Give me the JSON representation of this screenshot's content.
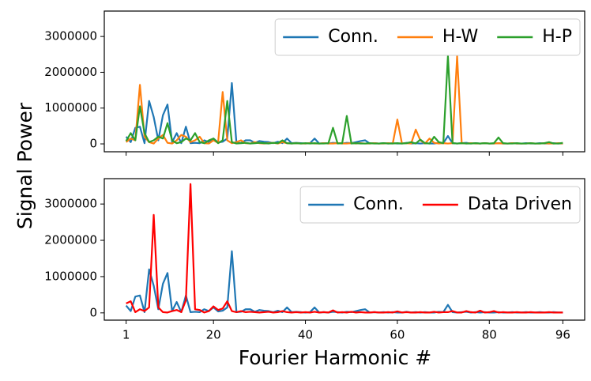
{
  "chart_data": [
    {
      "type": "line",
      "ylabel": "Signal Power",
      "x": [
        1,
        2,
        3,
        4,
        5,
        6,
        7,
        8,
        9,
        10,
        11,
        12,
        13,
        14,
        15,
        16,
        17,
        18,
        19,
        20,
        21,
        22,
        23,
        24,
        25,
        26,
        27,
        28,
        29,
        30,
        31,
        32,
        33,
        34,
        35,
        36,
        37,
        38,
        39,
        40,
        41,
        42,
        43,
        44,
        45,
        46,
        47,
        48,
        49,
        50,
        51,
        52,
        53,
        54,
        55,
        56,
        57,
        58,
        59,
        60,
        61,
        62,
        63,
        64,
        65,
        66,
        67,
        68,
        69,
        70,
        71,
        72,
        73,
        74,
        75,
        76,
        77,
        78,
        79,
        80,
        81,
        82,
        83,
        84,
        85,
        86,
        87,
        88,
        89,
        90,
        91,
        92,
        93,
        94,
        95,
        96
      ],
      "series": [
        {
          "name": "Conn.",
          "color": "#1f77b4",
          "values": [
            200000,
            50000,
            450000,
            480000,
            20000,
            1200000,
            750000,
            100000,
            800000,
            1100000,
            50000,
            300000,
            20000,
            480000,
            20000,
            30000,
            20000,
            100000,
            50000,
            150000,
            40000,
            60000,
            150000,
            1700000,
            20000,
            30000,
            100000,
            100000,
            30000,
            80000,
            60000,
            50000,
            20000,
            60000,
            20000,
            150000,
            20000,
            30000,
            20000,
            10000,
            20000,
            150000,
            10000,
            20000,
            10000,
            30000,
            20000,
            10000,
            30000,
            20000,
            50000,
            80000,
            100000,
            10000,
            20000,
            10000,
            20000,
            10000,
            20000,
            10000,
            10000,
            30000,
            10000,
            20000,
            10000,
            20000,
            10000,
            10000,
            30000,
            20000,
            220000,
            20000,
            10000,
            20000,
            30000,
            10000,
            20000,
            10000,
            20000,
            10000,
            10000,
            20000,
            10000,
            10000,
            20000,
            10000,
            10000,
            20000,
            10000,
            10000,
            20000,
            10000,
            10000,
            20000,
            10000,
            10000
          ]
        },
        {
          "name": "H-W",
          "color": "#ff7f0e",
          "values": [
            50000,
            150000,
            100000,
            1650000,
            200000,
            50000,
            10000,
            150000,
            250000,
            30000,
            10000,
            100000,
            250000,
            200000,
            50000,
            100000,
            200000,
            20000,
            10000,
            100000,
            30000,
            1450000,
            100000,
            20000,
            50000,
            100000,
            20000,
            10000,
            50000,
            20000,
            10000,
            20000,
            30000,
            10000,
            50000,
            20000,
            10000,
            20000,
            10000,
            10000,
            20000,
            10000,
            10000,
            20000,
            10000,
            10000,
            20000,
            10000,
            10000,
            20000,
            10000,
            20000,
            10000,
            10000,
            20000,
            10000,
            10000,
            20000,
            10000,
            680000,
            10000,
            20000,
            10000,
            400000,
            100000,
            10000,
            150000,
            30000,
            10000,
            20000,
            10000,
            20000,
            2450000,
            20000,
            10000,
            20000,
            10000,
            10000,
            20000,
            10000,
            10000,
            20000,
            10000,
            10000,
            20000,
            10000,
            10000,
            10000,
            20000,
            10000,
            10000,
            20000,
            10000,
            10000,
            20000,
            10000
          ]
        },
        {
          "name": "H-P",
          "color": "#2ca02c",
          "values": [
            80000,
            300000,
            100000,
            1050000,
            300000,
            50000,
            100000,
            200000,
            150000,
            580000,
            100000,
            20000,
            50000,
            150000,
            100000,
            300000,
            50000,
            20000,
            100000,
            150000,
            20000,
            100000,
            1200000,
            50000,
            10000,
            20000,
            30000,
            10000,
            20000,
            30000,
            20000,
            10000,
            30000,
            20000,
            100000,
            20000,
            10000,
            20000,
            10000,
            20000,
            10000,
            20000,
            10000,
            10000,
            20000,
            450000,
            10000,
            20000,
            780000,
            10000,
            20000,
            10000,
            10000,
            20000,
            10000,
            10000,
            20000,
            10000,
            10000,
            20000,
            10000,
            20000,
            50000,
            10000,
            120000,
            20000,
            10000,
            200000,
            50000,
            20000,
            2450000,
            20000,
            10000,
            20000,
            10000,
            10000,
            20000,
            10000,
            20000,
            10000,
            20000,
            180000,
            20000,
            10000,
            10000,
            20000,
            10000,
            10000,
            20000,
            10000,
            10000,
            20000,
            50000,
            10000,
            10000,
            30000
          ]
        }
      ],
      "xlim": [
        -3.75,
        100.75
      ],
      "xticks": [
        1,
        20,
        40,
        60,
        80,
        96
      ],
      "show_xtick_labels": false,
      "ylim": [
        -220000,
        3710000
      ],
      "yticks": [
        0,
        1000000,
        2000000,
        3000000
      ],
      "legend": "upper right",
      "legend_columns": 3
    },
    {
      "type": "line",
      "xlabel": "Fourier Harmonic #",
      "x": [
        1,
        2,
        3,
        4,
        5,
        6,
        7,
        8,
        9,
        10,
        11,
        12,
        13,
        14,
        15,
        16,
        17,
        18,
        19,
        20,
        21,
        22,
        23,
        24,
        25,
        26,
        27,
        28,
        29,
        30,
        31,
        32,
        33,
        34,
        35,
        36,
        37,
        38,
        39,
        40,
        41,
        42,
        43,
        44,
        45,
        46,
        47,
        48,
        49,
        50,
        51,
        52,
        53,
        54,
        55,
        56,
        57,
        58,
        59,
        60,
        61,
        62,
        63,
        64,
        65,
        66,
        67,
        68,
        69,
        70,
        71,
        72,
        73,
        74,
        75,
        76,
        77,
        78,
        79,
        80,
        81,
        82,
        83,
        84,
        85,
        86,
        87,
        88,
        89,
        90,
        91,
        92,
        93,
        94,
        95,
        96
      ],
      "series": [
        {
          "name": "Conn.",
          "color": "#1f77b4",
          "values": [
            200000,
            50000,
            450000,
            480000,
            20000,
            1200000,
            750000,
            100000,
            800000,
            1100000,
            50000,
            300000,
            20000,
            480000,
            20000,
            30000,
            20000,
            100000,
            50000,
            150000,
            40000,
            60000,
            150000,
            1700000,
            20000,
            30000,
            100000,
            100000,
            30000,
            80000,
            60000,
            50000,
            20000,
            60000,
            20000,
            150000,
            20000,
            30000,
            20000,
            10000,
            20000,
            150000,
            10000,
            20000,
            10000,
            30000,
            20000,
            10000,
            30000,
            20000,
            50000,
            80000,
            100000,
            10000,
            20000,
            10000,
            20000,
            10000,
            20000,
            10000,
            10000,
            30000,
            10000,
            20000,
            10000,
            20000,
            10000,
            10000,
            30000,
            20000,
            220000,
            20000,
            10000,
            20000,
            30000,
            10000,
            20000,
            10000,
            20000,
            10000,
            10000,
            20000,
            10000,
            10000,
            20000,
            10000,
            10000,
            20000,
            10000,
            10000,
            20000,
            10000,
            10000,
            20000,
            10000,
            10000
          ]
        },
        {
          "name": "Data Driven",
          "color": "#ff0000",
          "values": [
            260000,
            320000,
            20000,
            100000,
            50000,
            150000,
            2700000,
            150000,
            20000,
            10000,
            50000,
            80000,
            20000,
            350000,
            3550000,
            100000,
            80000,
            10000,
            50000,
            180000,
            80000,
            120000,
            320000,
            50000,
            20000,
            50000,
            20000,
            30000,
            20000,
            10000,
            20000,
            30000,
            10000,
            20000,
            50000,
            20000,
            10000,
            20000,
            10000,
            20000,
            10000,
            30000,
            10000,
            20000,
            10000,
            70000,
            10000,
            20000,
            10000,
            30000,
            10000,
            20000,
            10000,
            10000,
            20000,
            10000,
            10000,
            20000,
            10000,
            40000,
            10000,
            20000,
            10000,
            10000,
            20000,
            10000,
            10000,
            30000,
            10000,
            20000,
            20000,
            50000,
            10000,
            10000,
            50000,
            20000,
            10000,
            60000,
            10000,
            20000,
            50000,
            10000,
            20000,
            10000,
            10000,
            20000,
            10000,
            10000,
            20000,
            10000,
            10000,
            10000,
            20000,
            10000,
            10000,
            10000
          ]
        }
      ],
      "xlim": [
        -3.75,
        100.75
      ],
      "xticks": [
        1,
        20,
        40,
        60,
        80,
        96
      ],
      "show_xtick_labels": true,
      "ylim": [
        -200000,
        3700000
      ],
      "yticks": [
        0,
        1000000,
        2000000,
        3000000
      ],
      "legend": "upper right",
      "legend_columns": 2
    }
  ]
}
